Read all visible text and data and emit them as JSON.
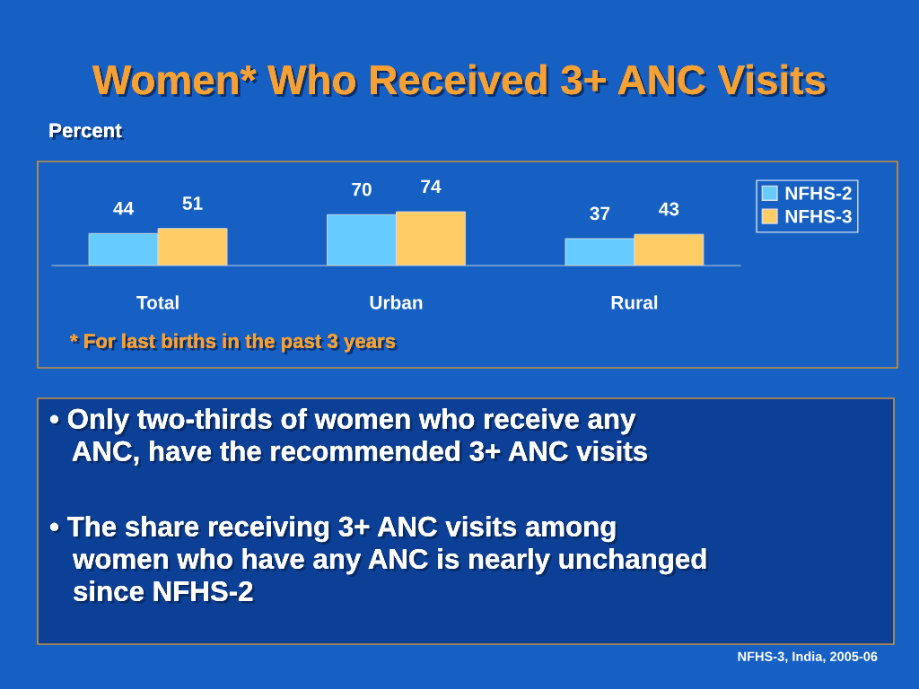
{
  "chart_data": {
    "type": "bar",
    "title": "Women* Who Received 3+ ANC Visits",
    "ylabel": "Percent",
    "categories": [
      "Total",
      "Urban",
      "Rural"
    ],
    "series": [
      {
        "name": "NFHS-2",
        "color": "#66ccff",
        "values": [
          44,
          70,
          37
        ]
      },
      {
        "name": "NFHS-3",
        "color": "#ffcc66",
        "values": [
          51,
          74,
          43
        ]
      }
    ],
    "data_labels": true,
    "legend": "right",
    "tick_labels": "x",
    "grid": false,
    "annotations": [
      "* For last births in the past 3 years",
      "• Only two-thirds of women who receive any\n   ANC, have the recommended 3+ ANC visits",
      "• The share receiving 3+ ANC visits among\n   women who have any ANC is nearly unchanged\n   since NFHS-2",
      "NFHS-3, India, 2005-06"
    ]
  }
}
